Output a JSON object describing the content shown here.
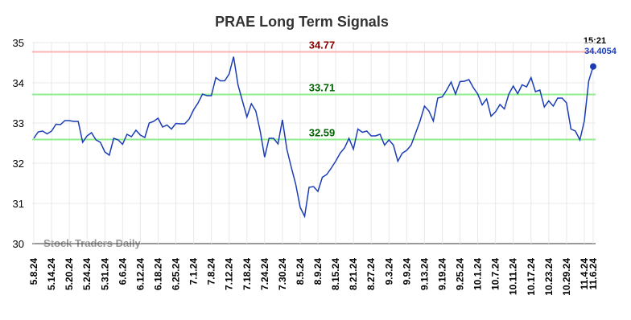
{
  "chart_data": {
    "type": "line",
    "title": "PRAE Long Term Signals",
    "watermark": "Stock Traders Daily",
    "last_time": "15:21",
    "color": "#1a3db5",
    "ylim": [
      30,
      35
    ],
    "yticks": [
      30,
      31,
      32,
      33,
      34,
      35
    ],
    "grid": true,
    "reference_lines": [
      {
        "value": 34.77,
        "color": "#ffb3b3",
        "label_color": "#8b0000"
      },
      {
        "value": 33.71,
        "color": "#90ee90",
        "label_color": "#006400"
      },
      {
        "value": 32.59,
        "color": "#90ee90",
        "label_color": "#006400"
      }
    ],
    "categories": [
      "5.8.24",
      null,
      null,
      null,
      "5.14.24",
      null,
      null,
      null,
      "5.20.24",
      null,
      null,
      null,
      "5.24.24",
      null,
      null,
      null,
      "5.31.24",
      null,
      null,
      null,
      "6.6.24",
      null,
      null,
      null,
      "6.12.24",
      null,
      null,
      null,
      "6.18.24",
      null,
      null,
      null,
      "6.25.24",
      null,
      null,
      null,
      "7.1.24",
      null,
      null,
      null,
      "7.8.24",
      null,
      null,
      null,
      "7.12.24",
      null,
      null,
      null,
      "7.18.24",
      null,
      null,
      null,
      "7.24.24",
      null,
      null,
      null,
      "7.30.24",
      null,
      null,
      null,
      "8.5.24",
      null,
      null,
      null,
      "8.9.24",
      null,
      null,
      null,
      "8.15.24",
      null,
      null,
      null,
      "8.21.24",
      null,
      null,
      null,
      "8.27.24",
      null,
      null,
      null,
      "9.3.24",
      null,
      null,
      null,
      "9.9.24",
      null,
      null,
      null,
      "9.13.24",
      null,
      null,
      null,
      "9.19.24",
      null,
      null,
      null,
      "9.25.24",
      null,
      null,
      null,
      "10.1.24",
      null,
      null,
      null,
      "10.7.24",
      null,
      null,
      null,
      "10.11.24",
      null,
      null,
      null,
      "10.17.24",
      null,
      null,
      null,
      "10.23.24",
      null,
      null,
      null,
      "10.29.24",
      null,
      null,
      null,
      "11.4.24",
      null,
      "11.6.24"
    ],
    "values": [
      32.62,
      32.78,
      32.8,
      32.73,
      32.8,
      32.97,
      32.96,
      33.06,
      33.06,
      33.04,
      33.04,
      32.52,
      32.68,
      32.76,
      32.58,
      32.52,
      32.28,
      32.2,
      32.62,
      32.58,
      32.47,
      32.72,
      32.66,
      32.82,
      32.7,
      32.64,
      33.0,
      33.04,
      33.12,
      32.9,
      32.95,
      32.85,
      32.99,
      32.98,
      32.98,
      33.1,
      33.33,
      33.5,
      33.72,
      33.68,
      33.68,
      34.13,
      34.05,
      34.05,
      34.22,
      34.65,
      33.95,
      33.55,
      33.15,
      33.48,
      33.3,
      32.8,
      32.15,
      32.62,
      32.62,
      32.48,
      33.08,
      32.35,
      31.9,
      31.48,
      30.9,
      30.68,
      31.4,
      31.42,
      31.3,
      31.65,
      31.72,
      31.88,
      32.05,
      32.25,
      32.38,
      32.62,
      32.35,
      32.85,
      32.77,
      32.8,
      32.68,
      32.68,
      32.72,
      32.45,
      32.58,
      32.45,
      32.05,
      32.25,
      32.32,
      32.45,
      32.75,
      33.05,
      33.42,
      33.3,
      33.05,
      33.62,
      33.65,
      33.82,
      34.02,
      33.72,
      34.03,
      34.04,
      34.08,
      33.88,
      33.72,
      33.45,
      33.6,
      33.17,
      33.28,
      33.46,
      33.35,
      33.72,
      33.92,
      33.73,
      33.95,
      33.9,
      34.13,
      33.78,
      33.82,
      33.4,
      33.55,
      33.42,
      33.62,
      33.62,
      33.5,
      32.85,
      32.8,
      32.58,
      33.05,
      34.05,
      34.4054
    ]
  }
}
